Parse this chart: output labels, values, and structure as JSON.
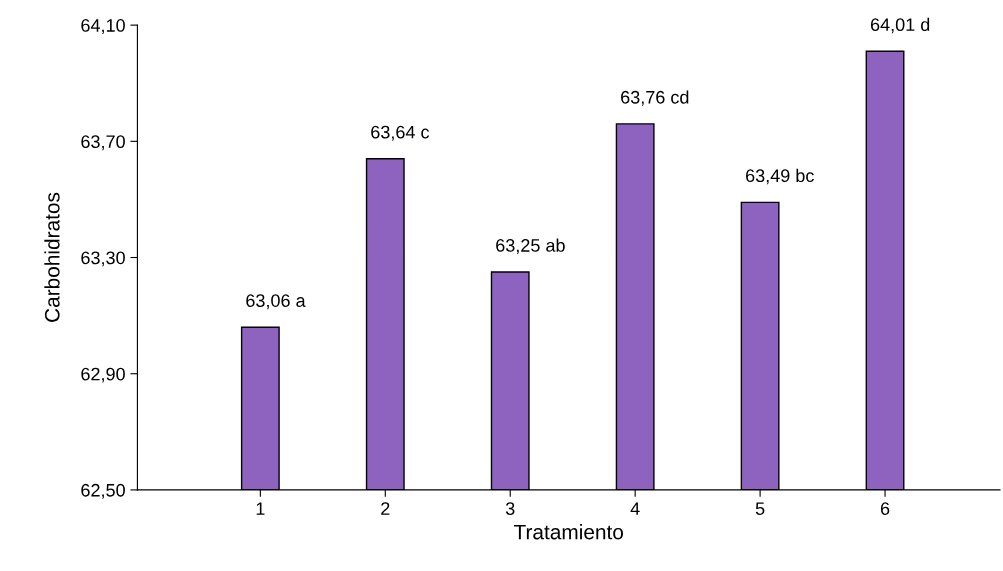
{
  "chart_data": {
    "type": "bar",
    "xlabel": "Tratamiento",
    "ylabel": "Carbohidratos",
    "categories": [
      "1",
      "2",
      "3",
      "4",
      "5",
      "6"
    ],
    "values": [
      63.06,
      63.64,
      63.25,
      63.76,
      63.49,
      64.01
    ],
    "value_labels": [
      "63,06 a",
      "63,64 c",
      "63,25 ab",
      "63,76 cd",
      "63,49 bc",
      "64,01 d"
    ],
    "color": "#8e63c0",
    "ylim": [
      62.5,
      64.1
    ],
    "yticks": [
      {
        "value": 62.5,
        "label": "62,50"
      },
      {
        "value": 62.9,
        "label": "62,90"
      },
      {
        "value": 63.3,
        "label": "63,30"
      },
      {
        "value": 63.7,
        "label": "63,70"
      },
      {
        "value": 64.1,
        "label": "64,10"
      }
    ],
    "grid": false
  }
}
